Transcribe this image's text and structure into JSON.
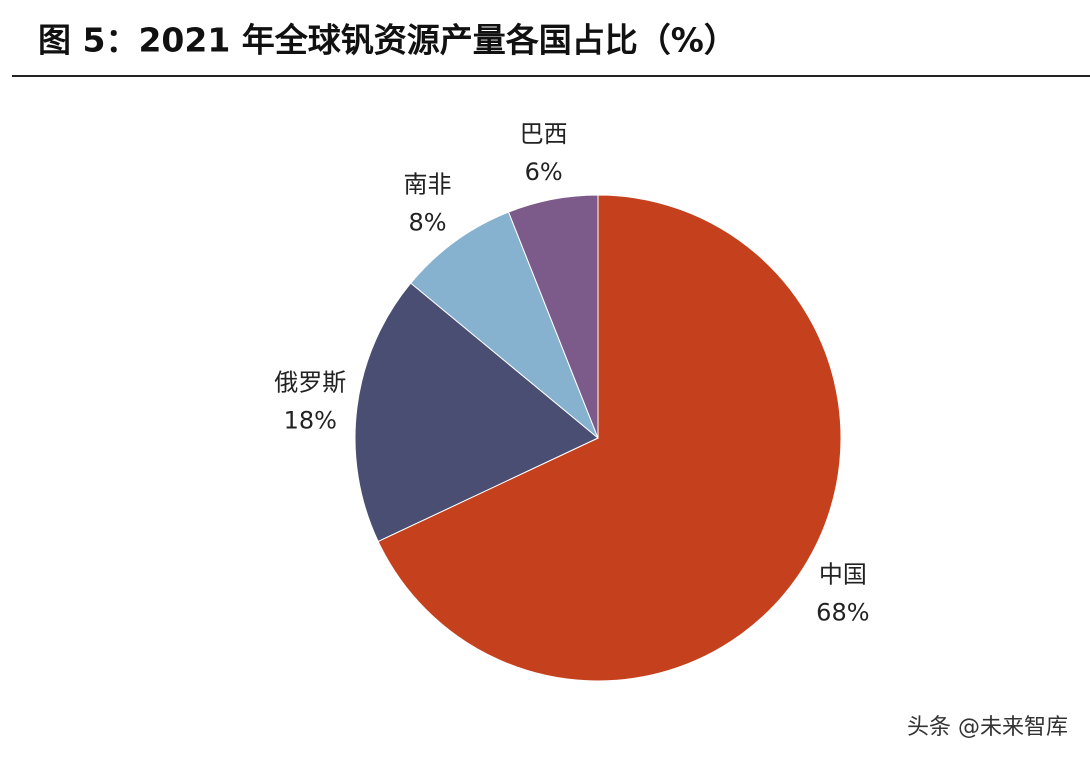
{
  "chart_data": {
    "type": "pie",
    "title": "图 5：2021 年全球钒资源产量各国占比（%）",
    "categories": [
      "中国",
      "俄罗斯",
      "南非",
      "巴西"
    ],
    "values": [
      68,
      18,
      8,
      6
    ],
    "value_labels": [
      "68%",
      "18%",
      "8%",
      "6%"
    ],
    "colors": [
      "#c5411e",
      "#4a4e72",
      "#87b2cf",
      "#7c5a8a"
    ]
  },
  "watermark": "头条 @未来智库"
}
